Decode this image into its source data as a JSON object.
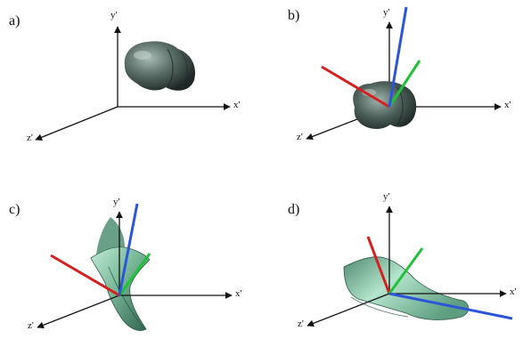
{
  "panels": [
    {
      "label": "a)",
      "axes": {
        "y": "y'",
        "x": "x'",
        "z": "z'"
      }
    },
    {
      "label": "b)",
      "axes": {
        "y": "y'",
        "x": "x'",
        "z": "z'"
      }
    },
    {
      "label": "c)",
      "axes": {
        "y": "y'",
        "x": "x'",
        "z": "z'"
      }
    },
    {
      "label": "d)",
      "axes": {
        "y": "y'",
        "x": "x'",
        "z": "z'"
      }
    }
  ],
  "colors": {
    "axis": "#111111",
    "red_vector": "#d62020",
    "green_vector": "#22c13a",
    "blue_vector": "#2d55d8",
    "blob_dark": "#2f3b38",
    "blob_light": "#8fa39c",
    "surface_dark": "#2f6650",
    "surface_light": "#a9dcc3"
  }
}
